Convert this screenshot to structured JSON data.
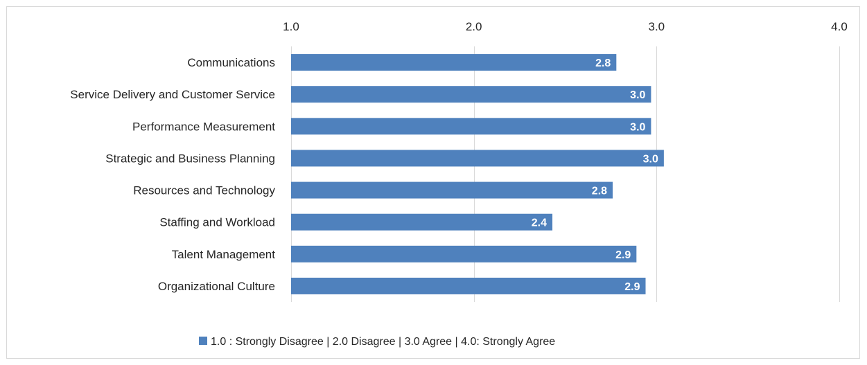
{
  "chart_data": {
    "type": "bar",
    "orientation": "horizontal",
    "categories": [
      "Communications",
      "Service Delivery and Customer Service",
      "Performance Measurement",
      "Strategic and Business Planning",
      "Resources and Technology",
      "Staffing and Workload",
      "Talent Management",
      "Organizational Culture"
    ],
    "values": [
      2.78,
      2.97,
      2.97,
      3.04,
      2.76,
      2.43,
      2.89,
      2.94
    ],
    "data_labels": [
      "2.8",
      "3.0",
      "3.0",
      "3.0",
      "2.8",
      "2.4",
      "2.9",
      "2.9"
    ],
    "xlim": [
      1.0,
      4.0
    ],
    "x_ticks": [
      "1.0",
      "2.0",
      "3.0",
      "4.0"
    ],
    "x_tick_values": [
      1.0,
      2.0,
      3.0,
      4.0
    ],
    "x_axis_position": "top",
    "grid": true,
    "legend_position": "bottom",
    "legend_label": "1.0 : Strongly Disagree | 2.0 Disagree | 3.0 Agree | 4.0: Strongly Agree",
    "title": "",
    "xlabel": "",
    "ylabel": "",
    "colors": {
      "bar": "#4f81bd",
      "grid": "#d9d9d9",
      "text": "#262626",
      "data_label": "#ffffff"
    }
  }
}
